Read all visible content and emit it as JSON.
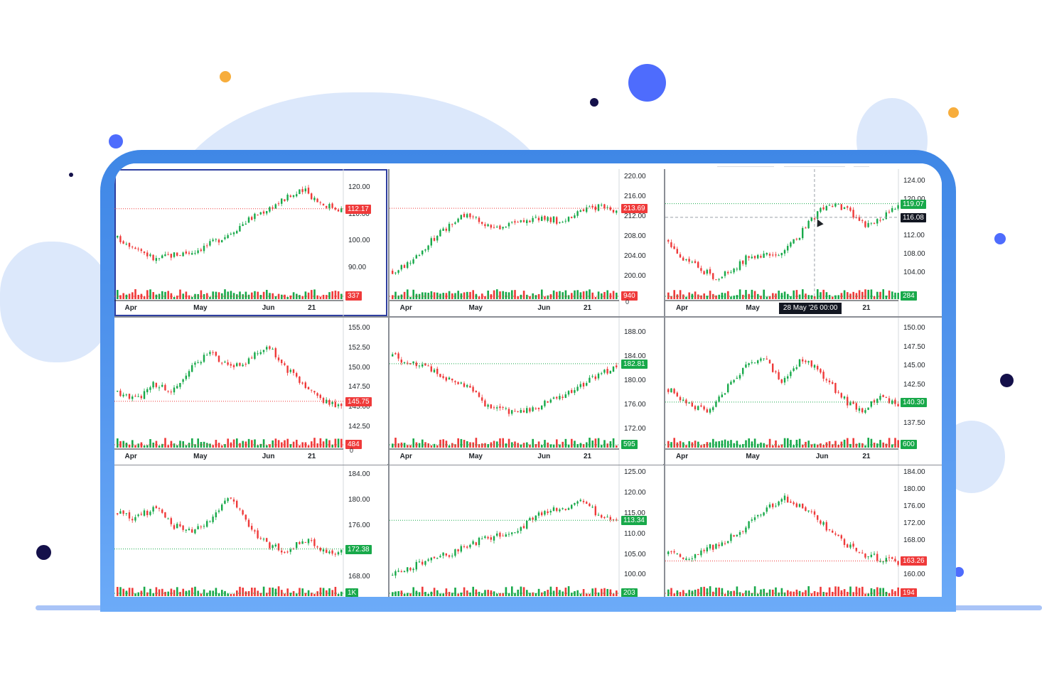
{
  "colors": {
    "up": "#18a94a",
    "down": "#ef3a3a",
    "active_border": "#2f3fa0",
    "device": "#4f93ea"
  },
  "panels": [
    {
      "id": "p1",
      "active": true,
      "y_labels": [
        "120.00",
        "110.00",
        "100.00",
        "90.00"
      ],
      "y_values": [
        120,
        110,
        100,
        90
      ],
      "y_min": 83,
      "y_max": 126,
      "x_labels": [
        "Apr",
        "May",
        "Jun",
        "21"
      ],
      "price_badge": "112.17",
      "price_value": 112.17,
      "price_color": "red",
      "volume_badge": "337",
      "volume_color": "red",
      "volume_zero": "",
      "trend": [
        101,
        98,
        93,
        95,
        96,
        99,
        103,
        108,
        112,
        116,
        119,
        114,
        112
      ]
    },
    {
      "id": "p2",
      "active": false,
      "y_labels": [
        "220.00",
        "216.00",
        "212.00",
        "208.00",
        "204.00",
        "200.00"
      ],
      "y_values": [
        220,
        216,
        212,
        208,
        204,
        200
      ],
      "y_min": 198,
      "y_max": 221,
      "x_labels": [
        "Apr",
        "May",
        "Jun",
        "21"
      ],
      "price_badge": "213.69",
      "price_value": 213.69,
      "price_color": "red",
      "volume_badge": "940",
      "volume_color": "red",
      "volume_zero": "0",
      "trend": [
        201,
        203,
        207,
        210,
        213,
        210,
        210,
        211,
        212,
        211,
        213,
        214,
        213
      ]
    },
    {
      "id": "p3",
      "active": false,
      "y_labels": [
        "124.00",
        "120.00",
        "112.00",
        "108.00",
        "104.00"
      ],
      "y_values": [
        124,
        120,
        112,
        108,
        104
      ],
      "y_min": 101,
      "y_max": 126,
      "x_labels": [
        "Apr",
        "May",
        "Jun",
        "21"
      ],
      "price_badge": "119.07",
      "price_value": 119.07,
      "price_color": "green",
      "cross_badge": "116.08",
      "cross_value": 116.08,
      "volume_badge": "284",
      "volume_color": "green",
      "volume_zero": "",
      "tooltip": "28 May '26   00:00",
      "trend": [
        111,
        107,
        105,
        103,
        104,
        107,
        108,
        107,
        110,
        114,
        118,
        119,
        117,
        114,
        116,
        119
      ]
    },
    {
      "id": "p4",
      "active": false,
      "y_labels": [
        "155.00",
        "152.50",
        "150.00",
        "147.50",
        "145.00",
        "142.50"
      ],
      "y_values": [
        155,
        152.5,
        150,
        147.5,
        145,
        142.5
      ],
      "y_min": 141.5,
      "y_max": 156,
      "x_labels": [
        "Apr",
        "May",
        "Jun",
        "21"
      ],
      "price_badge": "145.75",
      "price_value": 145.75,
      "price_color": "red",
      "volume_badge": "484",
      "volume_color": "red",
      "volume_zero": "0",
      "trend": [
        147,
        146,
        148,
        147,
        150,
        152,
        150,
        151,
        153,
        150,
        148,
        146,
        145
      ]
    },
    {
      "id": "p5",
      "active": false,
      "y_labels": [
        "188.00",
        "184.00",
        "180.00",
        "176.00",
        "172.00"
      ],
      "y_values": [
        188,
        184,
        180,
        176,
        172
      ],
      "y_min": 171,
      "y_max": 190,
      "x_labels": [
        "Apr",
        "May",
        "Jun",
        "21"
      ],
      "price_badge": "182.81",
      "price_value": 182.81,
      "price_color": "green",
      "volume_badge": "595",
      "volume_color": "green",
      "volume_zero": "",
      "trend": [
        184,
        183,
        182,
        180,
        179,
        176,
        175,
        175,
        176,
        177,
        179,
        181,
        182
      ]
    },
    {
      "id": "p6",
      "active": false,
      "y_labels": [
        "150.00",
        "147.50",
        "145.00",
        "142.50",
        "140.30",
        "137.50"
      ],
      "y_values": [
        150,
        147.5,
        145,
        142.5,
        140.3,
        137.5
      ],
      "y_min": 136,
      "y_max": 151,
      "x_labels": [
        "Apr",
        "May",
        "Jun",
        "21"
      ],
      "price_badge": "140.30",
      "price_value": 140.3,
      "price_color": "green",
      "volume_badge": "600",
      "volume_color": "green",
      "volume_zero": "",
      "trend": [
        142,
        140,
        139,
        142,
        145,
        146,
        143,
        146,
        144,
        141,
        139,
        141,
        140
      ]
    },
    {
      "id": "p7",
      "active": false,
      "y_labels": [
        "184.00",
        "180.00",
        "176.00",
        "168.00"
      ],
      "y_values": [
        184,
        180,
        176,
        168
      ],
      "y_min": 167,
      "y_max": 185,
      "x_labels": [],
      "price_badge": "172.38",
      "price_value": 172.38,
      "price_color": "green",
      "volume_badge": "1K",
      "volume_color": "green",
      "volume_zero": "0",
      "trend": [
        178,
        177,
        179,
        176,
        175,
        177,
        181,
        176,
        173,
        172,
        174,
        172,
        172
      ]
    },
    {
      "id": "p8",
      "active": false,
      "y_labels": [
        "125.00",
        "120.00",
        "115.00",
        "110.00",
        "105.00",
        "100.00"
      ],
      "y_values": [
        125,
        120,
        115,
        110,
        105,
        100
      ],
      "y_min": 98,
      "y_max": 126,
      "x_labels": [],
      "price_badge": "113.34",
      "price_value": 113.34,
      "price_color": "green",
      "volume_badge": "203",
      "volume_color": "green",
      "volume_zero": "",
      "trend": [
        100,
        102,
        104,
        105,
        107,
        109,
        110,
        112,
        115,
        116,
        118,
        115,
        113
      ]
    },
    {
      "id": "p9",
      "active": false,
      "y_labels": [
        "184.00",
        "180.00",
        "176.00",
        "172.00",
        "168.00",
        "163.26",
        "160.00"
      ],
      "y_values": [
        184,
        180,
        176,
        172,
        168,
        163.26,
        160
      ],
      "y_min": 158,
      "y_max": 185,
      "x_labels": [],
      "price_badge": "163.26",
      "price_value": 163.26,
      "price_color": "red",
      "volume_badge": "194",
      "volume_color": "red",
      "volume_zero": "",
      "trend": [
        165,
        164,
        166,
        168,
        171,
        175,
        178,
        176,
        172,
        168,
        165,
        164,
        163
      ]
    }
  ]
}
